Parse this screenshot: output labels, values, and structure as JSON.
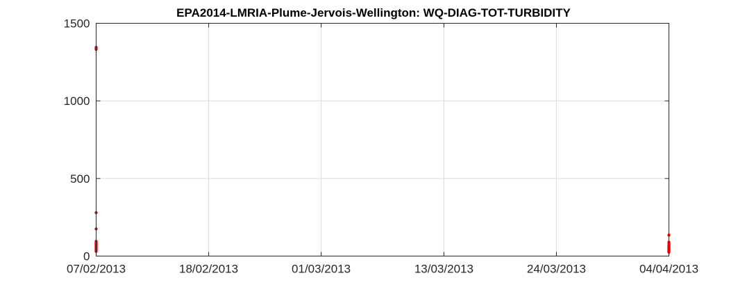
{
  "chart_data": {
    "type": "scatter",
    "title": "EPA2014-LMRIA-Plume-Jervois-Wellington: WQ-DIAG-TOT-TURBIDITY",
    "xlabel": "",
    "ylabel": "",
    "x_ticks": [
      "07/02/2013",
      "18/02/2013",
      "01/03/2013",
      "13/03/2013",
      "24/03/2013",
      "04/04/2013"
    ],
    "y_ticks": [
      "0",
      "500",
      "1000",
      "1500"
    ],
    "xlim": [
      "2013-02-07",
      "2013-04-04"
    ],
    "ylim": [
      0,
      1500
    ],
    "grid": true,
    "marker_color": "#ff0000",
    "series": [
      {
        "x": [
          "2013-02-07",
          "2013-02-07",
          "2013-02-07",
          "2013-02-07",
          "2013-02-07",
          "2013-02-07",
          "2013-02-07",
          "2013-02-07",
          "2013-02-07",
          "2013-02-07",
          "2013-02-07",
          "2013-02-07",
          "2013-02-07",
          "2013-02-07",
          "2013-02-07",
          "2013-02-07",
          "2013-04-04",
          "2013-04-04",
          "2013-04-04",
          "2013-04-04",
          "2013-04-04",
          "2013-04-04",
          "2013-04-04",
          "2013-04-04",
          "2013-04-04",
          "2013-04-04",
          "2013-04-04",
          "2013-04-04",
          "2013-04-04"
        ],
        "y": [
          1345,
          1338,
          1332,
          280,
          175,
          95,
          88,
          82,
          76,
          70,
          65,
          58,
          52,
          45,
          38,
          30,
          135,
          90,
          80,
          72,
          65,
          58,
          52,
          48,
          45,
          40,
          35,
          30,
          25
        ]
      }
    ]
  }
}
